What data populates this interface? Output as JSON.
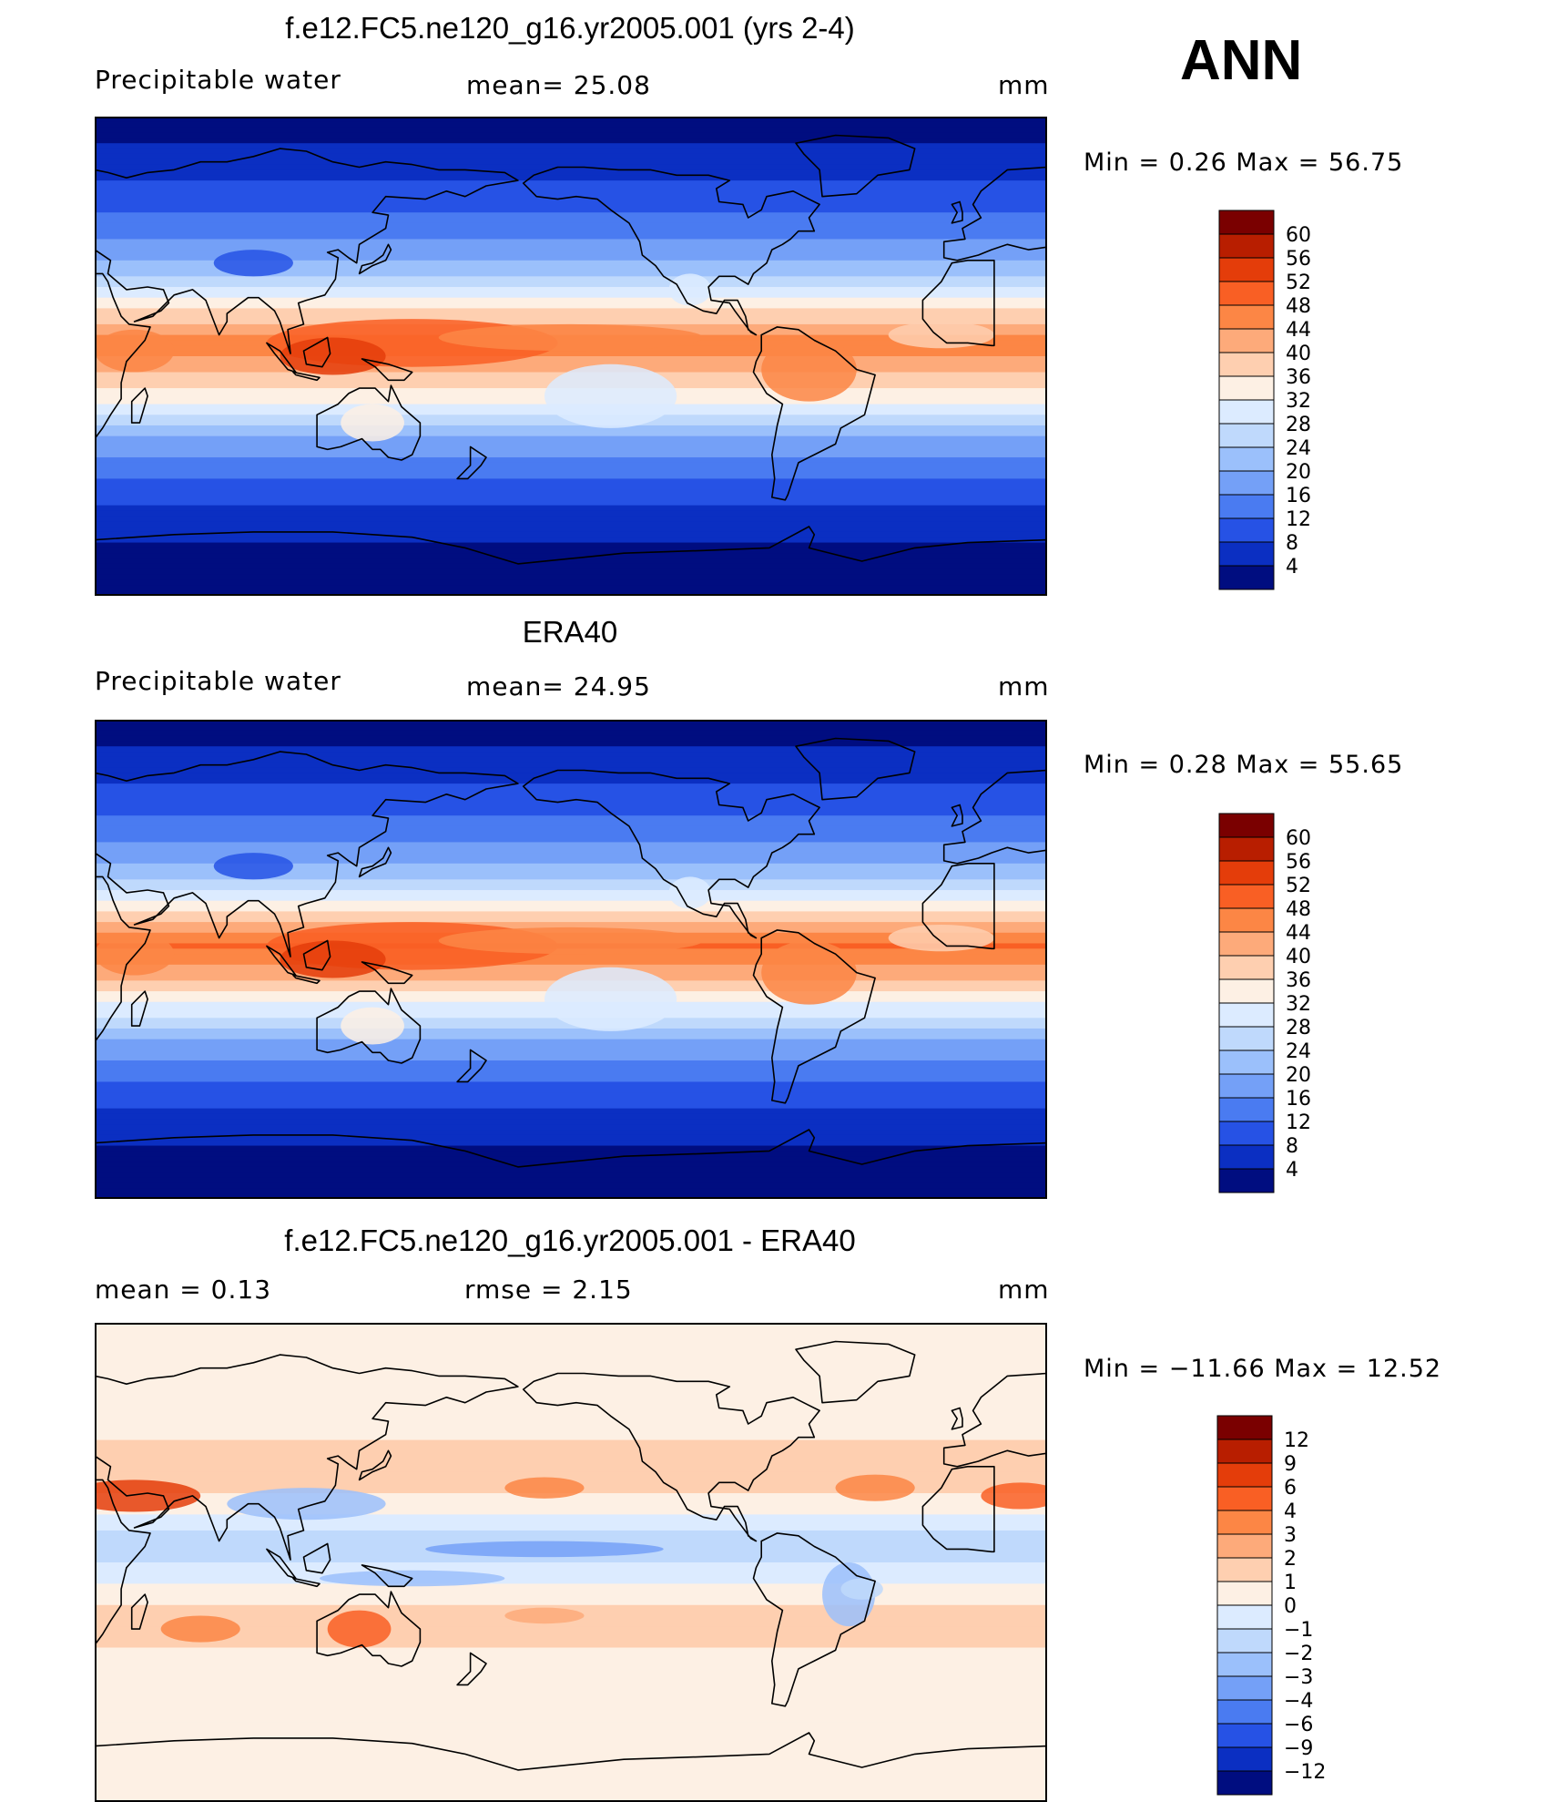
{
  "season": "ANN",
  "panels": [
    {
      "title": "f.e12.FC5.ne120_g16.yr2005.001 (yrs 2-4)",
      "left_label": "Precipitable  water",
      "stat1": "mean=   25.08",
      "stat2": "",
      "units": "mm",
      "minmax": "Min  =     0.26  Max  =    56.75",
      "colorbar": {
        "labels": [
          "60",
          "56",
          "52",
          "48",
          "44",
          "40",
          "36",
          "32",
          "28",
          "24",
          "20",
          "16",
          "12",
          "8",
          "4"
        ],
        "colors": [
          "#7a0000",
          "#b81e00",
          "#e43d0a",
          "#f95f24",
          "#fc8645",
          "#fdaa7a",
          "#fecfb0",
          "#fdf0e4",
          "#dcebff",
          "#bfd9fc",
          "#9bc0fb",
          "#74a0f7",
          "#4a7bf1",
          "#2652e5",
          "#0b2fc2",
          "#000d80"
        ]
      }
    },
    {
      "title": "ERA40",
      "left_label": "Precipitable  water",
      "stat1": "mean=   24.95",
      "stat2": "",
      "units": "mm",
      "minmax": "Min  =     0.28  Max  =    55.65",
      "colorbar": {
        "labels": [
          "60",
          "56",
          "52",
          "48",
          "44",
          "40",
          "36",
          "32",
          "28",
          "24",
          "20",
          "16",
          "12",
          "8",
          "4"
        ],
        "colors": [
          "#7a0000",
          "#b81e00",
          "#e43d0a",
          "#f95f24",
          "#fc8645",
          "#fdaa7a",
          "#fecfb0",
          "#fdf0e4",
          "#dcebff",
          "#bfd9fc",
          "#9bc0fb",
          "#74a0f7",
          "#4a7bf1",
          "#2652e5",
          "#0b2fc2",
          "#000d80"
        ]
      }
    },
    {
      "title": "f.e12.FC5.ne120_g16.yr2005.001 - ERA40",
      "left_label": "mean  =      0.13",
      "stat1": "rmse  =      2.15",
      "stat2": "",
      "units": "mm",
      "minmax": "Min  = −11.66  Max  =     12.52",
      "colorbar": {
        "labels": [
          "12",
          "9",
          "6",
          "4",
          "3",
          "2",
          "1",
          "0",
          "−1",
          "−2",
          "−3",
          "−4",
          "−6",
          "−9",
          "−12"
        ],
        "colors": [
          "#7a0000",
          "#b81e00",
          "#e43d0a",
          "#f95f24",
          "#fc8645",
          "#fdaa7a",
          "#fecfb0",
          "#fdf0e4",
          "#dcebff",
          "#bfd9fc",
          "#9bc0fb",
          "#74a0f7",
          "#4a7bf1",
          "#2652e5",
          "#0b2fc2",
          "#000d80"
        ]
      }
    }
  ],
  "chart_data": [
    {
      "type": "heatmap",
      "title": "f.e12.FC5.ne120_g16.yr2005.001 (yrs 2-4)",
      "variable": "Precipitable  water",
      "units": "mm",
      "mean": 25.08,
      "min": 0.26,
      "max": 56.75,
      "levels": [
        4,
        8,
        12,
        16,
        20,
        24,
        28,
        32,
        36,
        40,
        44,
        48,
        52,
        56,
        60
      ],
      "zonal_profile": [
        {
          "lat": 90,
          "value": 2
        },
        {
          "lat": 75,
          "value": 5
        },
        {
          "lat": 60,
          "value": 10
        },
        {
          "lat": 45,
          "value": 15
        },
        {
          "lat": 30,
          "value": 24
        },
        {
          "lat": 15,
          "value": 38
        },
        {
          "lat": 5,
          "value": 46
        },
        {
          "lat": 0,
          "value": 44
        },
        {
          "lat": -10,
          "value": 38
        },
        {
          "lat": -20,
          "value": 30
        },
        {
          "lat": -30,
          "value": 20
        },
        {
          "lat": -45,
          "value": 12
        },
        {
          "lat": -60,
          "value": 6
        },
        {
          "lat": -75,
          "value": 3
        },
        {
          "lat": -90,
          "value": 1
        }
      ]
    },
    {
      "type": "heatmap",
      "title": "ERA40",
      "variable": "Precipitable  water",
      "units": "mm",
      "mean": 24.95,
      "min": 0.28,
      "max": 55.65,
      "levels": [
        4,
        8,
        12,
        16,
        20,
        24,
        28,
        32,
        36,
        40,
        44,
        48,
        52,
        56,
        60
      ],
      "zonal_profile": [
        {
          "lat": 90,
          "value": 2
        },
        {
          "lat": 75,
          "value": 5
        },
        {
          "lat": 60,
          "value": 10
        },
        {
          "lat": 45,
          "value": 15
        },
        {
          "lat": 30,
          "value": 24
        },
        {
          "lat": 15,
          "value": 39
        },
        {
          "lat": 5,
          "value": 49
        },
        {
          "lat": 0,
          "value": 46
        },
        {
          "lat": -10,
          "value": 38
        },
        {
          "lat": -20,
          "value": 29
        },
        {
          "lat": -30,
          "value": 20
        },
        {
          "lat": -45,
          "value": 12
        },
        {
          "lat": -60,
          "value": 6
        },
        {
          "lat": -75,
          "value": 3
        },
        {
          "lat": -90,
          "value": 1
        }
      ]
    },
    {
      "type": "heatmap",
      "title": "f.e12.FC5.ne120_g16.yr2005.001 - ERA40",
      "units": "mm",
      "mean": 0.13,
      "rmse": 2.15,
      "min": -11.66,
      "max": 12.52,
      "levels": [
        -12,
        -9,
        -6,
        -4,
        -3,
        -2,
        -1,
        0,
        1,
        2,
        3,
        4,
        6,
        9,
        12
      ],
      "zonal_profile": [
        {
          "lat": 90,
          "value": 0.5
        },
        {
          "lat": 60,
          "value": 0.5
        },
        {
          "lat": 30,
          "value": 1.5
        },
        {
          "lat": 15,
          "value": -0.5
        },
        {
          "lat": 5,
          "value": -2
        },
        {
          "lat": 0,
          "value": -1
        },
        {
          "lat": -20,
          "value": 1.5
        },
        {
          "lat": -45,
          "value": 0.5
        },
        {
          "lat": -90,
          "value": 0.5
        }
      ]
    }
  ]
}
